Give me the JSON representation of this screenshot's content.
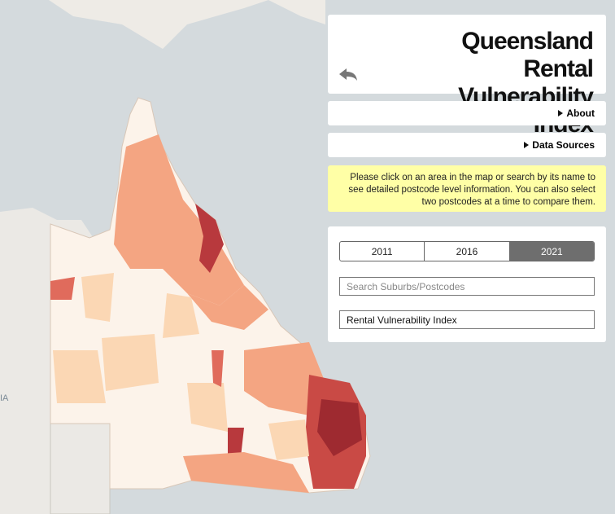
{
  "title": "Queensland Rental Vulnerability Index",
  "menu": [
    {
      "label": "About"
    },
    {
      "label": "Data Sources"
    }
  ],
  "notice": "Please click on an area in the map or search by its name to see detailed postcode level information. You can also select two postcodes at a time to compare them.",
  "year_tabs": {
    "options": [
      "2011",
      "2016",
      "2021"
    ],
    "selected": 2
  },
  "search": {
    "placeholder": "Search Suburbs/Postcodes"
  },
  "indicator": {
    "selected": "Rental Vulnerability Index"
  },
  "map": {
    "labels": [
      "IA"
    ]
  }
}
